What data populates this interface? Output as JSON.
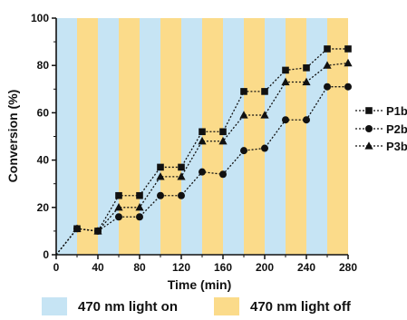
{
  "chart_data": {
    "type": "line",
    "xlabel": "Time (min)",
    "ylabel": "Conversion (%)",
    "xlim": [
      0,
      280
    ],
    "ylim": [
      0,
      100
    ],
    "xticks": [
      0,
      40,
      80,
      120,
      160,
      200,
      240,
      280
    ],
    "yticks": [
      0,
      20,
      40,
      60,
      80,
      100
    ],
    "band_width": 20,
    "band_colors": {
      "on": "#c6e4f4",
      "off": "#fbdb8a"
    },
    "bands_legend": {
      "on": "470 nm light on",
      "off": "470 nm light off"
    },
    "legend_position": "right",
    "grid": false,
    "series": [
      {
        "name": "P1b",
        "marker": "square",
        "x": [
          0,
          20,
          40,
          60,
          80,
          100,
          120,
          140,
          160,
          180,
          200,
          220,
          240,
          260,
          280
        ],
        "y": [
          0,
          11,
          10,
          25,
          25,
          37,
          37,
          52,
          52,
          69,
          69,
          78,
          79,
          87,
          87
        ]
      },
      {
        "name": "P2b",
        "marker": "circle",
        "x": [
          0,
          20,
          40,
          60,
          80,
          100,
          120,
          140,
          160,
          180,
          200,
          220,
          240,
          260,
          280
        ],
        "y": [
          0,
          11,
          10,
          16,
          16,
          25,
          25,
          35,
          34,
          44,
          45,
          57,
          57,
          71,
          71
        ]
      },
      {
        "name": "P3b",
        "marker": "triangle",
        "x": [
          0,
          20,
          40,
          60,
          80,
          100,
          120,
          140,
          160,
          180,
          200,
          220,
          240,
          260,
          280
        ],
        "y": [
          0,
          11,
          10,
          20,
          20,
          33,
          33,
          48,
          48,
          59,
          59,
          73,
          73,
          80,
          81
        ]
      }
    ]
  }
}
